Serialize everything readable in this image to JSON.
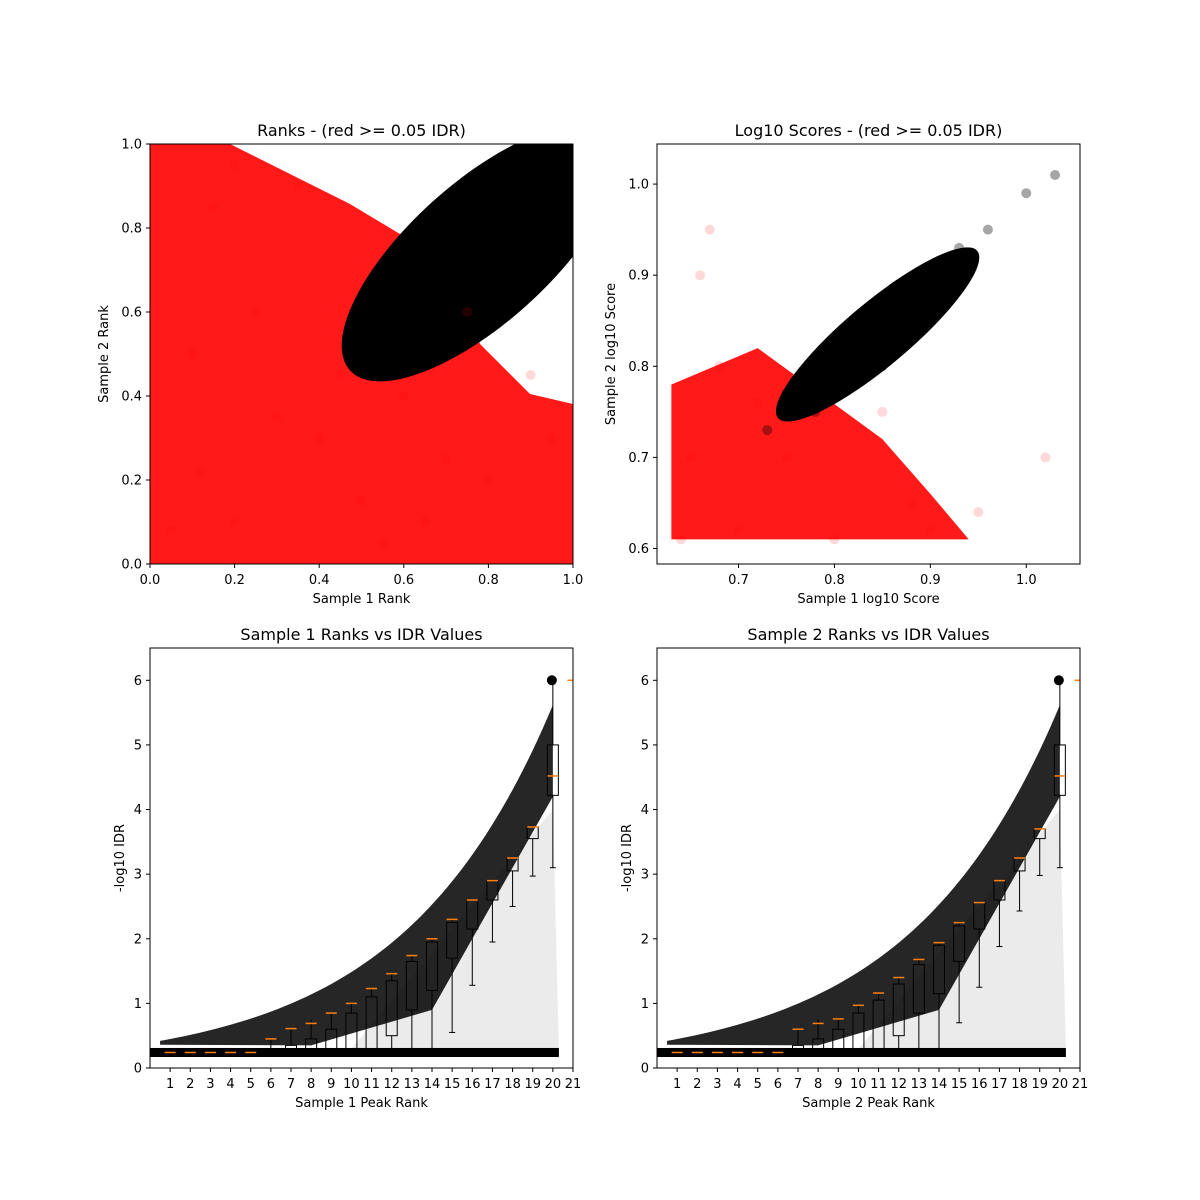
{
  "chart_data": [
    {
      "type": "scatter",
      "title": "Ranks - (red >= 0.05 IDR)",
      "xlabel": "Sample 1 Rank",
      "ylabel": "Sample 2 Rank",
      "xlim": [
        0.0,
        1.0
      ],
      "ylim": [
        0.0,
        1.0
      ],
      "xticks": [
        "0.0",
        "0.2",
        "0.4",
        "0.6",
        "0.8",
        "1.0"
      ],
      "yticks": [
        "0.0",
        "0.2",
        "0.4",
        "0.6",
        "0.8",
        "1.0"
      ],
      "colors": {
        "pass": "#000000",
        "fail": "#ff0000"
      },
      "series": [
        {
          "values": [
            [
              0.05,
              0.08
            ],
            [
              0.12,
              0.22
            ],
            [
              0.2,
              0.1
            ],
            [
              0.3,
              0.35
            ],
            [
              0.1,
              0.5
            ],
            [
              0.25,
              0.6
            ],
            [
              0.4,
              0.3
            ],
            [
              0.5,
              0.15
            ],
            [
              0.6,
              0.4
            ],
            [
              0.7,
              0.25
            ],
            [
              0.8,
              0.2
            ],
            [
              0.9,
              0.45
            ],
            [
              0.15,
              0.85
            ],
            [
              0.35,
              0.9
            ],
            [
              0.2,
              0.95
            ],
            [
              0.55,
              0.05
            ],
            [
              0.75,
              0.6
            ],
            [
              0.95,
              0.3
            ],
            [
              0.45,
              0.45
            ],
            [
              0.65,
              0.1
            ]
          ]
        },
        {
          "values": [
            [
              0.5,
              0.5
            ],
            [
              0.55,
              0.62
            ],
            [
              0.6,
              0.7
            ],
            [
              0.65,
              0.75
            ],
            [
              0.7,
              0.8
            ],
            [
              0.75,
              0.82
            ],
            [
              0.8,
              0.88
            ],
            [
              0.85,
              0.9
            ],
            [
              0.9,
              0.93
            ],
            [
              0.95,
              0.97
            ],
            [
              1.0,
              1.0
            ],
            [
              0.7,
              0.65
            ],
            [
              0.8,
              0.7
            ],
            [
              0.9,
              0.85
            ],
            [
              0.6,
              0.58
            ]
          ]
        }
      ]
    },
    {
      "type": "scatter",
      "title": "Log10 Scores - (red >= 0.05 IDR)",
      "xlabel": "Sample 1 log10 Score",
      "ylabel": "Sample 2 log10 Score",
      "xlim": [
        0.615,
        1.056
      ],
      "ylim": [
        0.583,
        1.044
      ],
      "xticks": [
        0.7,
        0.8,
        0.9,
        1.0
      ],
      "yticks": [
        0.6,
        0.7,
        0.8,
        0.9,
        1.0
      ],
      "xtick_labels": [
        "0.7",
        "0.8",
        "0.9",
        "1.0"
      ],
      "ytick_labels": [
        "0.6",
        "0.7",
        "0.8",
        "0.9",
        "1.0"
      ],
      "colors": {
        "pass": "#000000",
        "fail": "#ff0000"
      },
      "series": [
        {
          "values": [
            [
              0.64,
              0.61
            ],
            [
              0.7,
              0.62
            ],
            [
              0.8,
              0.61
            ],
            [
              0.9,
              0.62
            ],
            [
              0.65,
              0.7
            ],
            [
              0.68,
              0.8
            ],
            [
              0.66,
              0.9
            ],
            [
              0.67,
              0.95
            ],
            [
              0.75,
              0.7
            ],
            [
              0.85,
              0.75
            ],
            [
              0.88,
              0.65
            ],
            [
              0.95,
              0.64
            ],
            [
              0.72,
              0.76
            ],
            [
              1.02,
              0.7
            ]
          ]
        },
        {
          "values": [
            [
              0.73,
              0.73
            ],
            [
              0.75,
              0.77
            ],
            [
              0.78,
              0.8
            ],
            [
              0.8,
              0.83
            ],
            [
              0.83,
              0.85
            ],
            [
              0.86,
              0.88
            ],
            [
              0.9,
              0.91
            ],
            [
              0.93,
              0.93
            ],
            [
              0.96,
              0.95
            ],
            [
              1.0,
              0.99
            ],
            [
              1.03,
              1.01
            ],
            [
              0.85,
              0.8
            ],
            [
              0.78,
              0.75
            ]
          ]
        }
      ]
    },
    {
      "type": "boxplot",
      "title": "Sample 1 Ranks vs IDR Values",
      "xlabel": "Sample 1 Peak Rank",
      "ylabel": "-log10 IDR",
      "xlim": [
        0,
        21
      ],
      "ylim": [
        0,
        6.5
      ],
      "xticks": [
        "1",
        "2",
        "3",
        "4",
        "5",
        "6",
        "7",
        "8",
        "9",
        "10",
        "11",
        "12",
        "13",
        "14",
        "15",
        "16",
        "17",
        "18",
        "19",
        "20",
        "21"
      ],
      "yticks": [
        "0",
        "1",
        "2",
        "3",
        "4",
        "5",
        "6"
      ],
      "colors": {
        "box": "#000000",
        "median": "#ff7f0e",
        "points": "#000000"
      },
      "medians": [
        0.24,
        0.24,
        0.24,
        0.24,
        0.24,
        0.45,
        0.61,
        0.69,
        0.85,
        1.0,
        1.23,
        1.46,
        1.74,
        2.0,
        2.3,
        2.6,
        2.9,
        3.25,
        3.73,
        4.52,
        6.0
      ],
      "q1": [
        0.24,
        0.24,
        0.24,
        0.24,
        0.24,
        0.24,
        0.24,
        0.24,
        0.24,
        0.24,
        0.3,
        0.5,
        0.9,
        1.2,
        1.7,
        2.15,
        2.6,
        3.05,
        3.55,
        4.22,
        6.0
      ],
      "q3": [
        0.24,
        0.24,
        0.24,
        0.24,
        0.24,
        0.3,
        0.35,
        0.45,
        0.6,
        0.85,
        1.1,
        1.35,
        1.65,
        1.95,
        2.25,
        2.6,
        2.9,
        3.25,
        3.73,
        5.0,
        6.0
      ],
      "whisker_low": [
        0.24,
        0.24,
        0.24,
        0.24,
        0.24,
        0.24,
        0.24,
        0.24,
        0.24,
        0.24,
        0.24,
        0.24,
        0.24,
        0.24,
        0.55,
        1.28,
        1.95,
        2.5,
        2.97,
        3.1,
        6.0
      ],
      "whisker_high": [
        0.24,
        0.24,
        0.24,
        0.24,
        0.24,
        0.45,
        0.62,
        0.75,
        0.85,
        1.0,
        1.23,
        1.46,
        1.74,
        2.0,
        2.3,
        2.6,
        2.9,
        3.25,
        3.73,
        6.0,
        6.0
      ]
    },
    {
      "type": "boxplot",
      "title": "Sample 2 Ranks vs IDR Values",
      "xlabel": "Sample 2 Peak Rank",
      "ylabel": "-log10 IDR",
      "xlim": [
        0,
        21
      ],
      "ylim": [
        0,
        6.5
      ],
      "xticks": [
        "1",
        "2",
        "3",
        "4",
        "5",
        "6",
        "7",
        "8",
        "9",
        "10",
        "11",
        "12",
        "13",
        "14",
        "15",
        "16",
        "17",
        "18",
        "19",
        "20",
        "21"
      ],
      "yticks": [
        "0",
        "1",
        "2",
        "3",
        "4",
        "5",
        "6"
      ],
      "colors": {
        "box": "#000000",
        "median": "#ff7f0e",
        "points": "#000000"
      },
      "medians": [
        0.24,
        0.24,
        0.24,
        0.24,
        0.24,
        0.24,
        0.6,
        0.69,
        0.76,
        0.97,
        1.16,
        1.4,
        1.68,
        1.94,
        2.25,
        2.56,
        2.9,
        3.25,
        3.7,
        4.52,
        6.0
      ],
      "q1": [
        0.24,
        0.24,
        0.24,
        0.24,
        0.24,
        0.24,
        0.24,
        0.24,
        0.24,
        0.24,
        0.3,
        0.5,
        0.85,
        1.15,
        1.65,
        2.15,
        2.6,
        3.05,
        3.55,
        4.22,
        6.0
      ],
      "q3": [
        0.24,
        0.24,
        0.24,
        0.24,
        0.24,
        0.24,
        0.35,
        0.45,
        0.6,
        0.85,
        1.05,
        1.3,
        1.6,
        1.9,
        2.2,
        2.56,
        2.9,
        3.25,
        3.7,
        5.0,
        6.0
      ],
      "whisker_low": [
        0.24,
        0.24,
        0.24,
        0.24,
        0.24,
        0.24,
        0.24,
        0.24,
        0.24,
        0.24,
        0.24,
        0.24,
        0.24,
        0.24,
        0.7,
        1.25,
        1.88,
        2.43,
        2.98,
        3.1,
        6.0
      ],
      "whisker_high": [
        0.24,
        0.24,
        0.24,
        0.24,
        0.24,
        0.24,
        0.6,
        0.75,
        0.76,
        0.97,
        1.16,
        1.4,
        1.68,
        1.94,
        2.25,
        2.56,
        2.9,
        3.25,
        3.7,
        6.0,
        6.0
      ]
    }
  ]
}
